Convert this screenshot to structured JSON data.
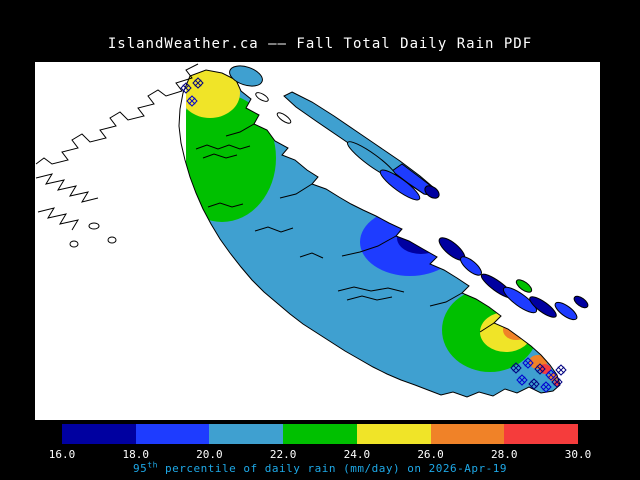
{
  "title": "IslandWeather.ca —— Fall Total Daily Rain PDF",
  "caption": {
    "number": "95",
    "superscript": "th",
    "text": " percentile of daily rain (mm/day) on 2026-Apr-19",
    "color": "#1ea8e6"
  },
  "palette": {
    "navy": "#0000a0",
    "blue": "#1e3cff",
    "cyan": "#3fa0d0",
    "green": "#00c000",
    "yellow": "#f0e428",
    "orange": "#f08228",
    "red": "#f53c3c",
    "water": "#ffffff",
    "coast": "#000000"
  },
  "colorbar": {
    "segments": [
      {
        "label": "16-18",
        "color": "#0000a0"
      },
      {
        "label": "18-20",
        "color": "#1e3cff"
      },
      {
        "label": "20-22",
        "color": "#3fa0d0"
      },
      {
        "label": "22-24",
        "color": "#00c000"
      },
      {
        "label": "24-26",
        "color": "#f0e428"
      },
      {
        "label": "26-28",
        "color": "#f08228"
      },
      {
        "label": "28-30",
        "color": "#f53c3c"
      }
    ],
    "tick_labels": [
      "16.0",
      "18.0",
      "20.0",
      "22.0",
      "24.0",
      "26.0",
      "28.0",
      "30.0"
    ]
  },
  "chart_data": {
    "type": "heatmap",
    "title": "IslandWeather.ca —— Fall Total Daily Rain PDF",
    "variable": "95th percentile of daily rain",
    "units": "mm/day",
    "date": "2026-Apr-19",
    "legend_position": "bottom",
    "colorbar_boundaries": [
      16.0,
      18.0,
      20.0,
      22.0,
      24.0,
      26.0,
      28.0,
      30.0
    ],
    "colorbar_colors": [
      "#0000a0",
      "#1e3cff",
      "#3fa0d0",
      "#00c000",
      "#f0e428",
      "#f08228",
      "#f53c3c"
    ],
    "map_regions": [
      {
        "area": "most of Vancouver Island",
        "value_mm_day": "20-22"
      },
      {
        "area": "northern Vancouver Island",
        "value_mm_day": "22-24"
      },
      {
        "area": "northern tip patch",
        "value_mm_day": "24-26"
      },
      {
        "area": "east-central coastal blob",
        "value_mm_day": "16-20"
      },
      {
        "area": "south-island outer ring",
        "value_mm_day": "22-24"
      },
      {
        "area": "south-island inner area",
        "value_mm_day": "24-26"
      },
      {
        "area": "southern tip / Victoria area",
        "value_mm_day": "26-30"
      }
    ],
    "markers": {
      "symbol": "diamond-x-hatch",
      "locations": [
        "north island tip",
        "southern tip"
      ]
    }
  }
}
